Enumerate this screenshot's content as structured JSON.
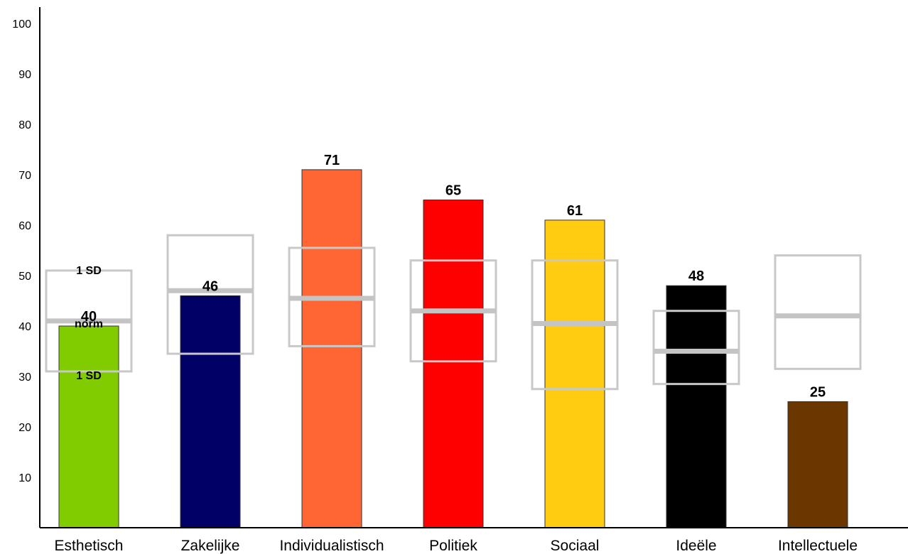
{
  "chart_data": {
    "type": "bar",
    "title": "",
    "xlabel": "",
    "ylabel": "",
    "ylim": [
      0,
      100
    ],
    "yticks": [
      10,
      20,
      30,
      40,
      50,
      60,
      70,
      80,
      90,
      100
    ],
    "grid": false,
    "categories": [
      "Esthetisch",
      "Zakelijke",
      "Individualistisch",
      "Politiek",
      "Sociaal",
      "Ideële",
      "Intellectuele"
    ],
    "values": [
      40,
      46,
      71,
      65,
      61,
      48,
      25
    ],
    "colors": [
      "#80cc00",
      "#000066",
      "#ff6633",
      "#ff0000",
      "#ffcc11",
      "#000000",
      "#6b3600"
    ],
    "norm": [
      {
        "mean": 41,
        "sd_low": 31,
        "sd_high": 51
      },
      {
        "mean": 47,
        "sd_low": 34.5,
        "sd_high": 58
      },
      {
        "mean": 45.5,
        "sd_low": 36,
        "sd_high": 55.5
      },
      {
        "mean": 43,
        "sd_low": 33,
        "sd_high": 53
      },
      {
        "mean": 40.5,
        "sd_low": 27.5,
        "sd_high": 53
      },
      {
        "mean": 35,
        "sd_low": 28.5,
        "sd_high": 43
      },
      {
        "mean": 42,
        "sd_low": 31.5,
        "sd_high": 54
      }
    ],
    "annotations": {
      "sd_upper": "1 SD",
      "norm": "norm",
      "sd_lower": "1 SD"
    }
  }
}
